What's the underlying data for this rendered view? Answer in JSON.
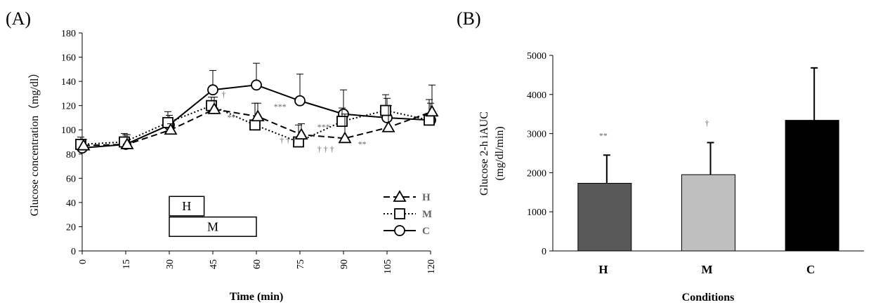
{
  "chart_data": [
    {
      "panel": "(A)",
      "type": "line",
      "xlabel": "Time (min)",
      "ylabel": "Glucose concentration（mg/dl）",
      "x": [
        0,
        15,
        30,
        45,
        60,
        75,
        90,
        105,
        120
      ],
      "xlim": [
        0,
        120
      ],
      "ylim": [
        0,
        180
      ],
      "y_ticks": [
        0,
        20,
        40,
        60,
        80,
        100,
        120,
        140,
        160,
        180
      ],
      "x_tick_labels": [
        "0",
        "15",
        "30",
        "45",
        "60",
        "75",
        "90",
        "105",
        "120"
      ],
      "grid": false,
      "legend": "right",
      "series": [
        {
          "name": "H",
          "marker": "triangle",
          "line": "dashed",
          "values": [
            87,
            88,
            100,
            117,
            111,
            96,
            93,
            102,
            115
          ],
          "errors": [
            5,
            8,
            5,
            10,
            11,
            9,
            20,
            18,
            22
          ]
        },
        {
          "name": "M",
          "marker": "square",
          "line": "dotted",
          "values": [
            88,
            90,
            106,
            120,
            104,
            90,
            107,
            116,
            108
          ],
          "errors": [
            6,
            7,
            9,
            7,
            18,
            14,
            11,
            13,
            17
          ]
        },
        {
          "name": "C",
          "marker": "circle",
          "line": "solid",
          "values": [
            85,
            88,
            104,
            133,
            137,
            124,
            113,
            110,
            108
          ],
          "errors": [
            6,
            8,
            8,
            16,
            18,
            22,
            20,
            16,
            14
          ]
        }
      ],
      "annotations": [
        {
          "text": "†",
          "x": 48,
          "y": 127
        },
        {
          "text": "**",
          "x": 50,
          "y": 108
        },
        {
          "text": "***",
          "x": 66,
          "y": 117
        },
        {
          "text": "† † †",
          "x": 68,
          "y": 89
        },
        {
          "text": "***",
          "x": 81,
          "y": 100
        },
        {
          "text": "† † †",
          "x": 81,
          "y": 82
        },
        {
          "text": "**",
          "x": 95,
          "y": 86
        }
      ],
      "timing_boxes": [
        {
          "label": "H",
          "start": 30,
          "end": 42,
          "y_top": 45,
          "y_bottom": 29
        },
        {
          "label": "M",
          "start": 30,
          "end": 60,
          "y_top": 28,
          "y_bottom": 12
        }
      ]
    },
    {
      "panel": "(B)",
      "type": "bar",
      "xlabel": "Conditions",
      "ylabel": "Glucose 2-h iAUC",
      "ylabel_unit": "(mg/dl/min)",
      "categories": [
        "H",
        "M",
        "C"
      ],
      "values": [
        1730,
        1950,
        3340
      ],
      "errors": [
        720,
        820,
        1340
      ],
      "colors": [
        "#595959",
        "#bfbfbf",
        "#000000"
      ],
      "ylim": [
        0,
        5000
      ],
      "y_ticks": [
        0,
        1000,
        2000,
        3000,
        4000,
        5000
      ],
      "grid": false,
      "annotations": [
        "**",
        "†",
        ""
      ]
    }
  ]
}
